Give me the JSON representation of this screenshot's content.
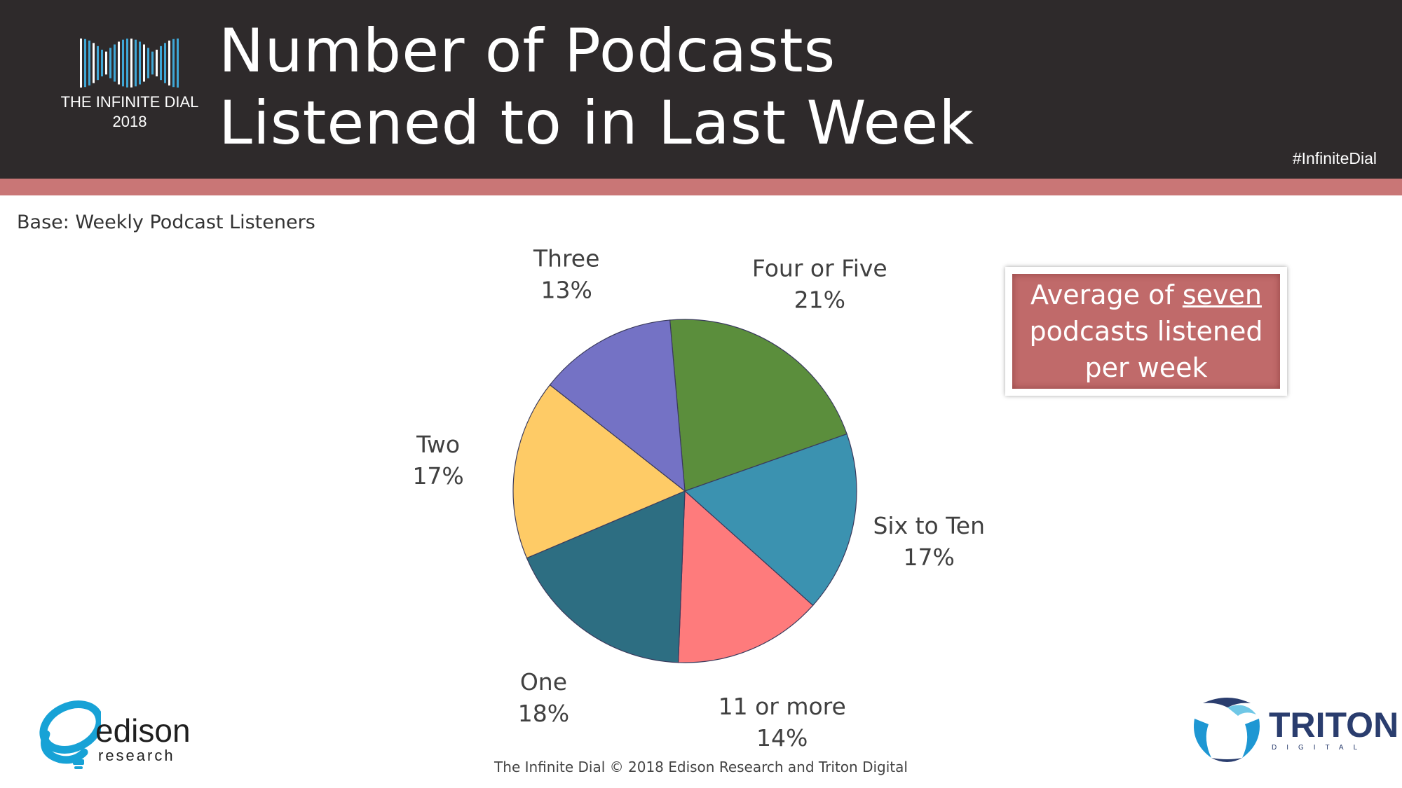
{
  "header": {
    "title_line1": "Number of Podcasts",
    "title_line2": "Listened to in Last Week",
    "logo_line1": "THE INFINITE DIAL",
    "logo_line2": "2018",
    "hashtag": "#InfiniteDial",
    "bg_color": "#2e2a2b",
    "stripe_color": "#c97676"
  },
  "base_note": "Base: Weekly Podcast Listeners",
  "callout": {
    "part1": "Average of ",
    "emphasis": "seven",
    "part2": "podcasts listened",
    "part3": "per week"
  },
  "footer": "The Infinite Dial    © 2018 Edison Research and Triton Digital",
  "logos": {
    "edison_word": "edison",
    "edison_sub": "research",
    "triton_word": "TRITON",
    "triton_sub": "DIGITAL"
  },
  "chart_data": {
    "type": "pie",
    "title": "",
    "start_angle_deg": -5,
    "direction": "clockwise",
    "slices": [
      {
        "label": "Four or Five",
        "value": 21,
        "display": "21%",
        "color": "#5b8e3c"
      },
      {
        "label": "Six to Ten",
        "value": 17,
        "display": "17%",
        "color": "#3b92b0"
      },
      {
        "label": "11 or more",
        "value": 14,
        "display": "14%",
        "color": "#fe7b7c"
      },
      {
        "label": "One",
        "value": 18,
        "display": "18%",
        "color": "#2d6e82"
      },
      {
        "label": "Two",
        "value": 17,
        "display": "17%",
        "color": "#fecb66"
      },
      {
        "label": "Three",
        "value": 13,
        "display": "13%",
        "color": "#7472c5"
      }
    ]
  }
}
